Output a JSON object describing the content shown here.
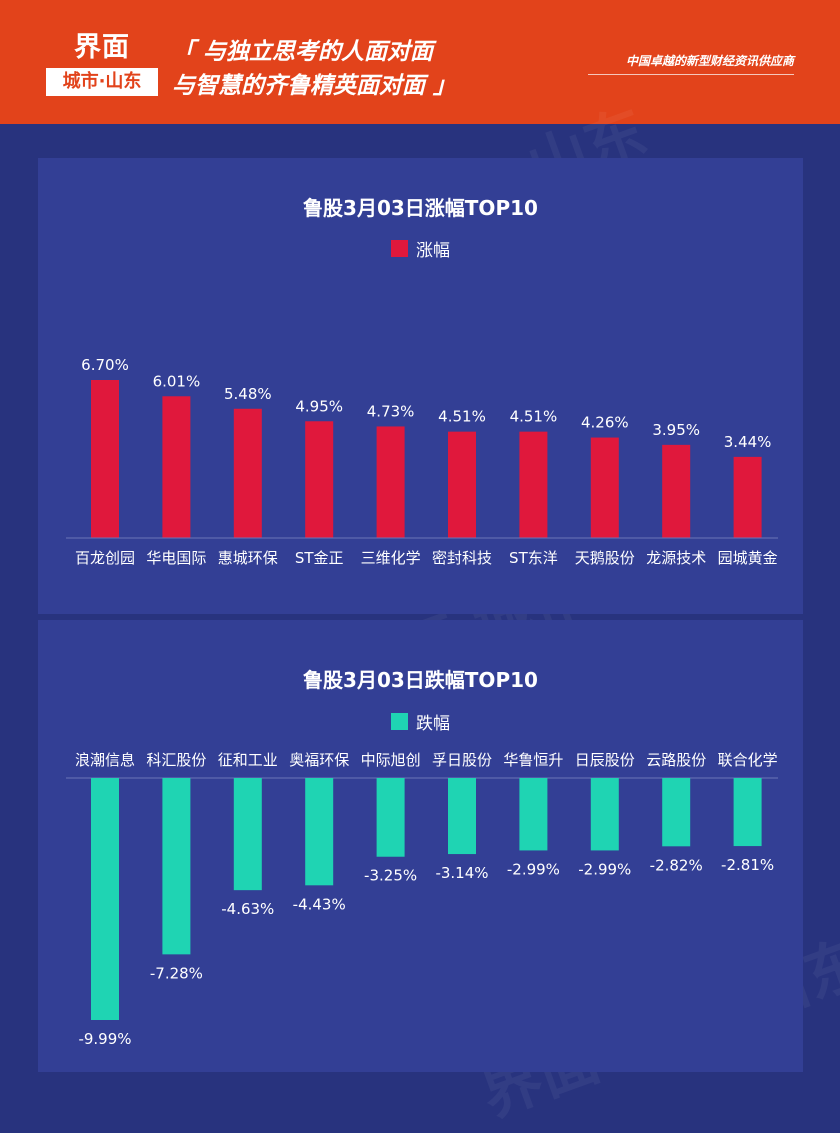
{
  "header": {
    "logo_main": "界面",
    "logo_sub": "城市·山东",
    "slogan_line1": "「 与独立思考的人面对面",
    "slogan_line2": "与智慧的齐鲁精英面对面 」",
    "tagline": "中国卓越的新型财经资讯供应商"
  },
  "watermark_text": "界面 城市·山东",
  "colors": {
    "header_bg": "#e2431b",
    "page_bg": "#28337e",
    "panel_bg": "#333f95",
    "gain_bar": "#e0183c",
    "loss_bar": "#1fd4b3"
  },
  "chart_data": [
    {
      "type": "bar",
      "title": "鲁股3月03日涨幅TOP10",
      "legend": "涨幅",
      "categories": [
        "百龙创园",
        "华电国际",
        "惠城环保",
        "ST金正",
        "三维化学",
        "密封科技",
        "ST东洋",
        "天鹅股份",
        "龙源技术",
        "园城黄金"
      ],
      "values": [
        6.7,
        6.01,
        5.48,
        4.95,
        4.73,
        4.51,
        4.51,
        4.26,
        3.95,
        3.44
      ],
      "labels": [
        "6.70%",
        "6.01%",
        "5.48%",
        "4.95%",
        "4.73%",
        "4.51%",
        "4.51%",
        "4.26%",
        "3.95%",
        "3.44%"
      ],
      "ylim": [
        0,
        6.7
      ],
      "grid": false,
      "legend_position": "top"
    },
    {
      "type": "bar",
      "title": "鲁股3月03日跌幅TOP10",
      "legend": "跌幅",
      "categories": [
        "浪潮信息",
        "科汇股份",
        "征和工业",
        "奥福环保",
        "中际旭创",
        "孚日股份",
        "华鲁恒升",
        "日辰股份",
        "云路股份",
        "联合化学"
      ],
      "values": [
        -9.99,
        -7.28,
        -4.63,
        -4.43,
        -3.25,
        -3.14,
        -2.99,
        -2.99,
        -2.82,
        -2.81
      ],
      "labels": [
        "-9.99%",
        "-7.28%",
        "-4.63%",
        "-4.43%",
        "-3.25%",
        "-3.14%",
        "-2.99%",
        "-2.99%",
        "-2.82%",
        "-2.81%"
      ],
      "ylim": [
        -9.99,
        0
      ],
      "grid": false,
      "legend_position": "top"
    }
  ]
}
